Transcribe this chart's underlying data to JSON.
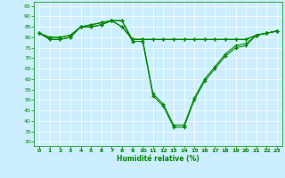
{
  "xlabel": "Humidité relative (%)",
  "xlim": [
    -0.5,
    23.5
  ],
  "ylim": [
    28,
    97
  ],
  "yticks": [
    30,
    35,
    40,
    45,
    50,
    55,
    60,
    65,
    70,
    75,
    80,
    85,
    90,
    95
  ],
  "xticks": [
    0,
    1,
    2,
    3,
    4,
    5,
    6,
    7,
    8,
    9,
    10,
    11,
    12,
    13,
    14,
    15,
    16,
    17,
    18,
    19,
    20,
    21,
    22,
    23
  ],
  "background_color": "#cceeff",
  "grid_color": "#aaddcc",
  "line_color": "#008800",
  "lines": [
    [
      82,
      79,
      79,
      80,
      85,
      85,
      86,
      88,
      88,
      78,
      78,
      52,
      47,
      37,
      37,
      50,
      59,
      65,
      71,
      75,
      76,
      81,
      82,
      83
    ],
    [
      82,
      79,
      79,
      80,
      85,
      85,
      86,
      88,
      88,
      79,
      79,
      53,
      48,
      38,
      38,
      51,
      60,
      66,
      72,
      76,
      77,
      81,
      82,
      83
    ],
    [
      82,
      80,
      80,
      81,
      85,
      86,
      87,
      88,
      85,
      79,
      79,
      79,
      79,
      79,
      79,
      79,
      79,
      79,
      79,
      79,
      79,
      81,
      82,
      83
    ],
    [
      82,
      80,
      80,
      81,
      85,
      86,
      87,
      88,
      85,
      79,
      79,
      79,
      79,
      79,
      79,
      79,
      79,
      79,
      79,
      79,
      79,
      81,
      82,
      83
    ]
  ]
}
